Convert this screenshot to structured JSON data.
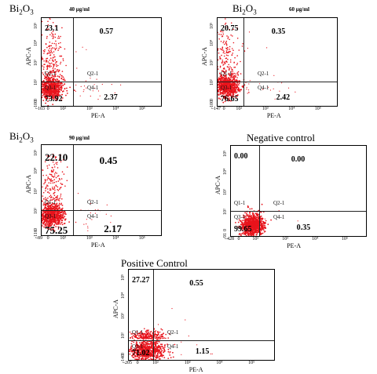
{
  "chart_data": [
    {
      "type": "scatter",
      "title": "Bi2O3",
      "subtitle": "40 µg/ml",
      "xlabel": "PE-A",
      "ylabel": "APC-A",
      "xticks": [
        "-103",
        "0",
        "10²",
        "10³",
        "10⁴",
        "10⁵"
      ],
      "yticks": [
        "-100",
        "0",
        "10²",
        "10³",
        "10⁴",
        "10⁵"
      ],
      "quadrants": [
        {
          "name": "Q1-1",
          "value": "23.1"
        },
        {
          "name": "Q2-1",
          "value": "0.57"
        },
        {
          "name": "Q3-1",
          "value": "73.92"
        },
        {
          "name": "Q4-1",
          "value": "2.37"
        }
      ]
    },
    {
      "type": "scatter",
      "title": "Bi2O3",
      "subtitle": "60 µg/ml",
      "xlabel": "PE-A",
      "ylabel": "APC-A",
      "xticks": [
        "-147",
        "0",
        "10²",
        "10³",
        "10⁴",
        "10⁵"
      ],
      "yticks": [
        "-100",
        "0",
        "10²",
        "10³",
        "10⁴",
        "10⁵"
      ],
      "quadrants": [
        {
          "name": "Q1-1",
          "value": "20.75"
        },
        {
          "name": "Q2-1",
          "value": "0.35"
        },
        {
          "name": "Q3-1",
          "value": "76.65"
        },
        {
          "name": "Q4-1",
          "value": "2.42"
        }
      ]
    },
    {
      "type": "scatter",
      "title": "Bi2O3",
      "subtitle": "90 µg/ml",
      "xlabel": "PE-A",
      "ylabel": "APC-A",
      "xticks": [
        "-89",
        "0",
        "10²",
        "10³",
        "10⁴",
        "10⁵"
      ],
      "yticks": [
        "-116",
        "0",
        "10²",
        "10³",
        "10⁴",
        "10⁵"
      ],
      "quadrants": [
        {
          "name": "Q1-1",
          "value": "22.10"
        },
        {
          "name": "Q2-1",
          "value": "0.45"
        },
        {
          "name": "Q3-1",
          "value": "75.25"
        },
        {
          "name": "Q4-1",
          "value": "2.17"
        }
      ]
    },
    {
      "type": "scatter",
      "title": "Negative control",
      "subtitle": "",
      "xlabel": "PE-A",
      "ylabel": "APC-A",
      "xticks": [
        "-428",
        "0",
        "10²",
        "10³",
        "10⁴",
        "10⁵"
      ],
      "yticks": [
        "-91",
        "0",
        "10²",
        "10³",
        "10⁴",
        "10⁵"
      ],
      "quadrants": [
        {
          "name": "Q1-1",
          "value": "0.00"
        },
        {
          "name": "Q2-1",
          "value": "0.00"
        },
        {
          "name": "Q3-1",
          "value": "99.65"
        },
        {
          "name": "Q4-1",
          "value": "0.35"
        }
      ]
    },
    {
      "type": "scatter",
      "title": "Positive Control",
      "subtitle": "",
      "xlabel": "PE-A",
      "ylabel": "APC-A",
      "xticks": [
        "-205",
        "0",
        "10²",
        "10³",
        "10⁴",
        "10⁵"
      ],
      "yticks": [
        "-140",
        "0",
        "10²",
        "10³",
        "10⁴",
        "10⁵"
      ],
      "quadrants": [
        {
          "name": "Q1-1",
          "value": "27.27"
        },
        {
          "name": "Q2-1",
          "value": "0.55"
        },
        {
          "name": "Q3-1",
          "value": "71.02"
        },
        {
          "name": "Q4-1",
          "value": "1.15"
        }
      ]
    }
  ],
  "colors": {
    "dots": "#e8141c",
    "gate": "#222222"
  }
}
